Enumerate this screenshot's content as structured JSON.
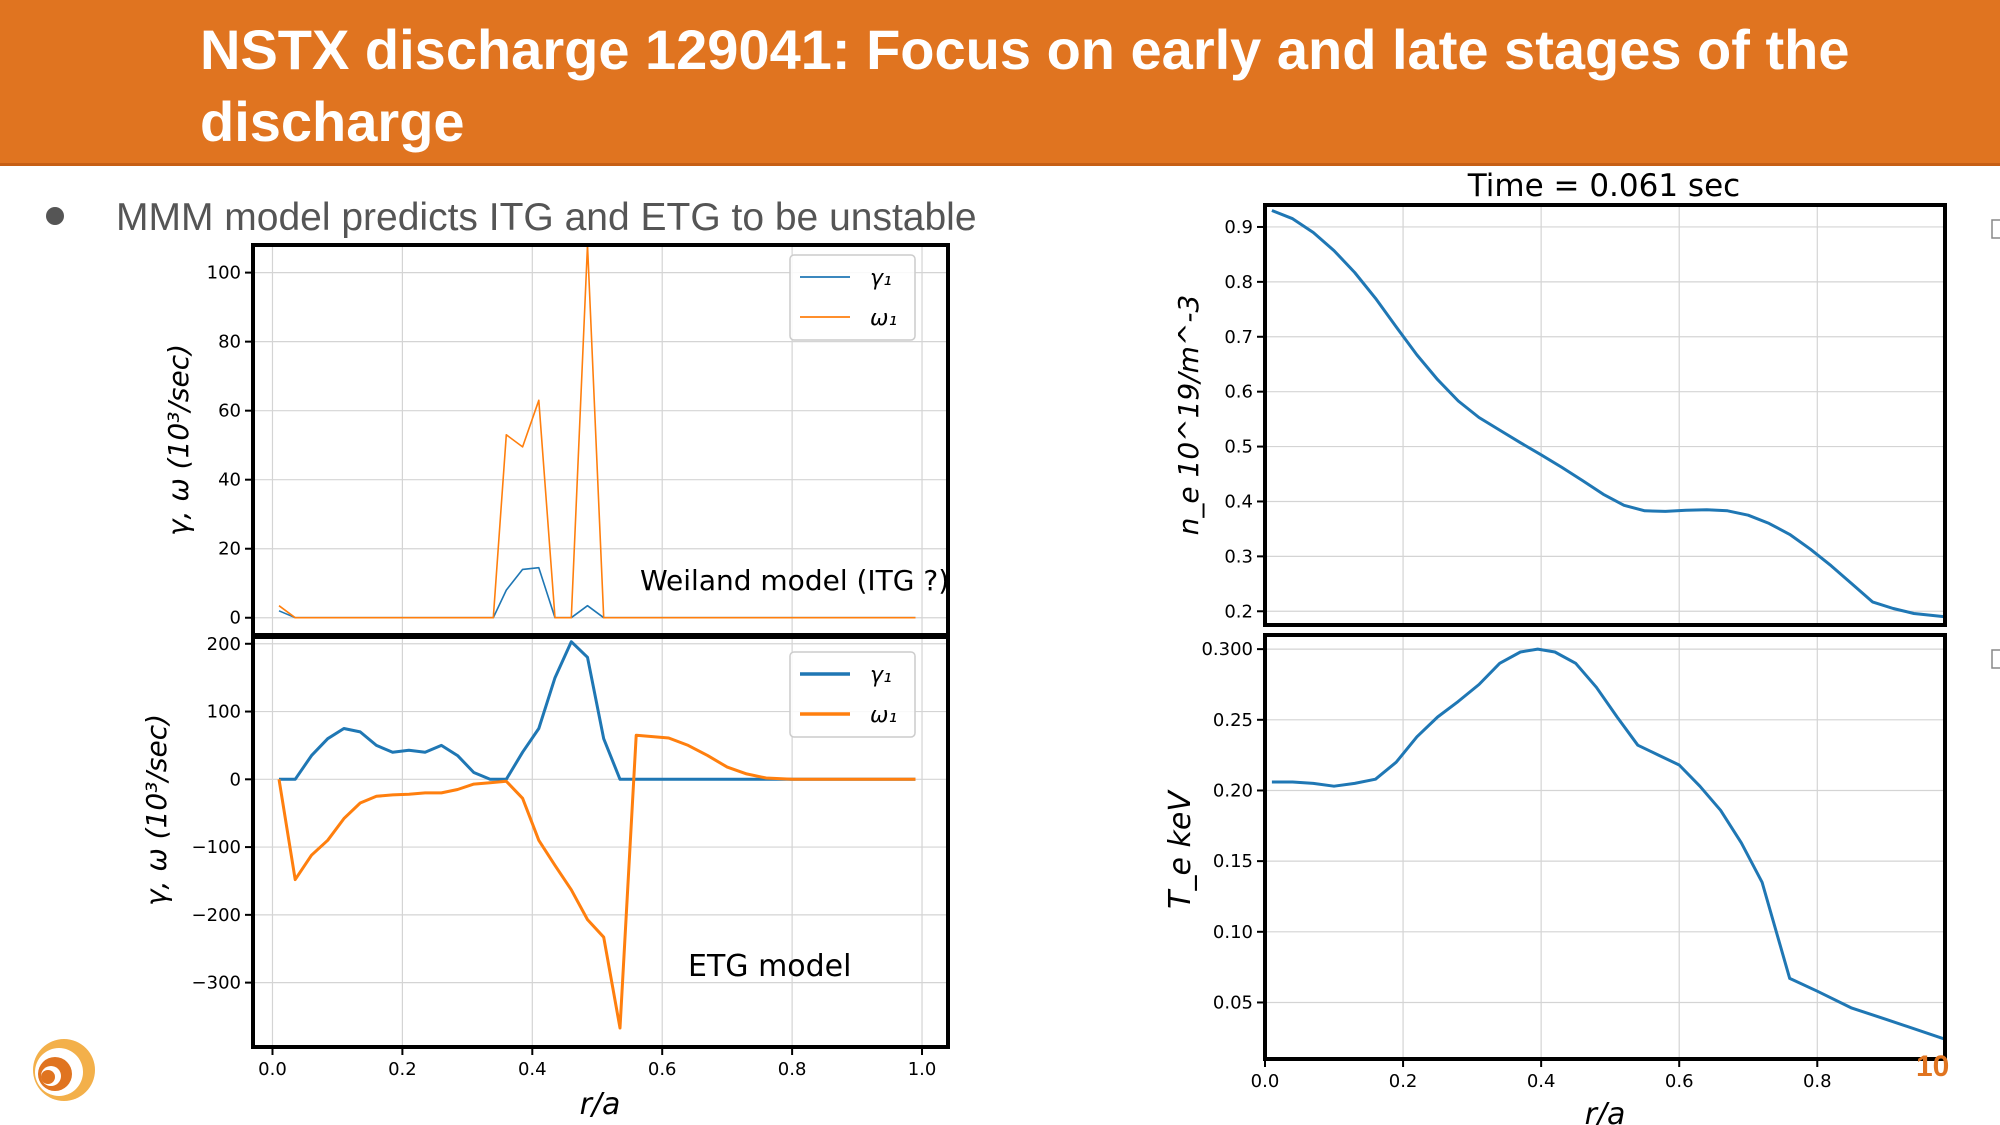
{
  "slide": {
    "title": "NSTX discharge 129041: Focus on early and late stages of the discharge",
    "bullet": "MMM model predicts ITG and ETG to be unstable",
    "page_number": "10",
    "colors": {
      "title_bar": "#e07420",
      "series_gamma": "#1f77b4",
      "series_omega": "#ff7f0e"
    },
    "logo_icon": "swirl-logo-icon"
  },
  "chart_data": [
    {
      "id": "weiland",
      "type": "line",
      "annotation": "Weiland model (ITG ?)",
      "ylabel": "γ, ω (10³/sec)",
      "xlabel": "",
      "xlim": [
        -0.03,
        1.04
      ],
      "ylim": [
        -5,
        108
      ],
      "xticks": [],
      "yticks": [
        0,
        20,
        40,
        60,
        80,
        100
      ],
      "ytick_labels": [
        "0",
        "20",
        "40",
        "60",
        "80",
        "100"
      ],
      "grid": true,
      "legend": "top-right",
      "series": [
        {
          "name": "γ₁",
          "color": "#1f77b4",
          "width": 1.6,
          "x": [
            0.01,
            0.035,
            0.34,
            0.36,
            0.385,
            0.41,
            0.435,
            0.46,
            0.485,
            0.51,
            0.99
          ],
          "y": [
            2,
            0,
            0,
            8,
            14,
            14.5,
            0,
            0,
            3.5,
            0,
            0
          ]
        },
        {
          "name": "ω₁",
          "color": "#ff7f0e",
          "width": 1.6,
          "x": [
            0.01,
            0.035,
            0.34,
            0.36,
            0.385,
            0.41,
            0.435,
            0.46,
            0.485,
            0.51,
            0.99
          ],
          "y": [
            3.5,
            0,
            0,
            53,
            49.5,
            63,
            0,
            0,
            108,
            0,
            0
          ]
        }
      ]
    },
    {
      "id": "etg",
      "type": "line",
      "annotation": "ETG model",
      "ylabel": "γ, ω (10³/sec)",
      "xlabel": "r/a",
      "xlim": [
        -0.03,
        1.04
      ],
      "ylim": [
        -395,
        210
      ],
      "xticks": [
        0.0,
        0.2,
        0.4,
        0.6,
        0.8,
        1.0
      ],
      "xtick_labels": [
        "0.0",
        "0.2",
        "0.4",
        "0.6",
        "0.8",
        "1.0"
      ],
      "yticks": [
        -300,
        -200,
        -100,
        0,
        100,
        200
      ],
      "ytick_labels": [
        "−300",
        "−200",
        "−100",
        "0",
        "100",
        "200"
      ],
      "grid": true,
      "legend": "top-right",
      "series": [
        {
          "name": "γ₁",
          "color": "#1f77b4",
          "width": 3,
          "x": [
            0.01,
            0.035,
            0.06,
            0.085,
            0.11,
            0.135,
            0.16,
            0.185,
            0.21,
            0.235,
            0.26,
            0.285,
            0.31,
            0.335,
            0.36,
            0.385,
            0.41,
            0.435,
            0.46,
            0.485,
            0.51,
            0.535,
            0.56,
            0.6,
            0.7,
            0.8,
            0.99
          ],
          "y": [
            0,
            0,
            35,
            60,
            75,
            70,
            50,
            40,
            43,
            40,
            50,
            35,
            10,
            0,
            0,
            40,
            75,
            150,
            203,
            180,
            60,
            0,
            0,
            0,
            0,
            0,
            0
          ]
        },
        {
          "name": "ω₁",
          "color": "#ff7f0e",
          "width": 3,
          "x": [
            0.01,
            0.035,
            0.06,
            0.085,
            0.11,
            0.135,
            0.16,
            0.185,
            0.21,
            0.235,
            0.26,
            0.285,
            0.31,
            0.335,
            0.36,
            0.385,
            0.41,
            0.435,
            0.46,
            0.485,
            0.51,
            0.535,
            0.56,
            0.585,
            0.61,
            0.64,
            0.67,
            0.7,
            0.73,
            0.76,
            0.8,
            0.99
          ],
          "y": [
            0,
            -148,
            -112,
            -90,
            -58,
            -35,
            -25,
            -23,
            -22,
            -20,
            -20,
            -15,
            -7,
            -5,
            -3,
            -28,
            -90,
            -127,
            -163,
            -207,
            -233,
            -367,
            65,
            63,
            61,
            50,
            35,
            18,
            8,
            2,
            0,
            0
          ]
        }
      ]
    },
    {
      "id": "ne",
      "type": "line",
      "title": "Time = 0.061 sec",
      "ylabel": "n_e 10^19/m^-3",
      "xlabel": "",
      "xlim": [
        0,
        0.985
      ],
      "ylim": [
        0.175,
        0.94
      ],
      "xticks": [],
      "yticks": [
        0.2,
        0.3,
        0.4,
        0.5,
        0.6,
        0.7,
        0.8,
        0.9
      ],
      "ytick_labels": [
        "0.2",
        "0.3",
        "0.4",
        "0.5",
        "0.6",
        "0.7",
        "0.8",
        "0.9"
      ],
      "grid": true,
      "series": [
        {
          "name": "",
          "color": "#1f77b4",
          "width": 3,
          "x": [
            0.01,
            0.04,
            0.07,
            0.1,
            0.13,
            0.16,
            0.19,
            0.22,
            0.25,
            0.28,
            0.31,
            0.34,
            0.37,
            0.4,
            0.43,
            0.46,
            0.49,
            0.52,
            0.55,
            0.58,
            0.61,
            0.64,
            0.67,
            0.7,
            0.73,
            0.76,
            0.79,
            0.82,
            0.85,
            0.88,
            0.91,
            0.94,
            0.985
          ],
          "y": [
            0.93,
            0.915,
            0.89,
            0.857,
            0.817,
            0.77,
            0.718,
            0.667,
            0.622,
            0.583,
            0.553,
            0.53,
            0.507,
            0.485,
            0.462,
            0.438,
            0.413,
            0.393,
            0.383,
            0.382,
            0.384,
            0.385,
            0.383,
            0.375,
            0.36,
            0.34,
            0.313,
            0.283,
            0.25,
            0.217,
            0.205,
            0.196,
            0.19
          ]
        }
      ]
    },
    {
      "id": "te",
      "type": "line",
      "ylabel": "T_e keV",
      "xlabel": "r/a",
      "xlim": [
        0,
        0.985
      ],
      "ylim": [
        0.01,
        0.31
      ],
      "xticks": [
        0.0,
        0.2,
        0.4,
        0.6,
        0.8
      ],
      "xtick_labels": [
        "0.0",
        "0.2",
        "0.4",
        "0.6",
        "0.8"
      ],
      "yticks": [
        0.05,
        0.1,
        0.15,
        0.2,
        0.25,
        0.3
      ],
      "ytick_labels": [
        "0.05",
        "0.10",
        "0.15",
        "0.20",
        "0.25",
        "0.300"
      ],
      "grid": true,
      "series": [
        {
          "name": "",
          "color": "#1f77b4",
          "width": 3,
          "x": [
            0.01,
            0.04,
            0.07,
            0.1,
            0.13,
            0.16,
            0.19,
            0.22,
            0.25,
            0.28,
            0.31,
            0.34,
            0.37,
            0.395,
            0.42,
            0.45,
            0.48,
            0.51,
            0.54,
            0.57,
            0.6,
            0.63,
            0.66,
            0.69,
            0.72,
            0.76,
            0.8,
            0.85,
            0.9,
            0.985
          ],
          "y": [
            0.206,
            0.206,
            0.205,
            0.203,
            0.205,
            0.208,
            0.22,
            0.238,
            0.252,
            0.263,
            0.275,
            0.29,
            0.298,
            0.3,
            0.298,
            0.29,
            0.273,
            0.252,
            0.232,
            0.225,
            0.218,
            0.203,
            0.186,
            0.163,
            0.135,
            0.067,
            0.058,
            0.046,
            0.038,
            0.024
          ]
        }
      ]
    }
  ]
}
